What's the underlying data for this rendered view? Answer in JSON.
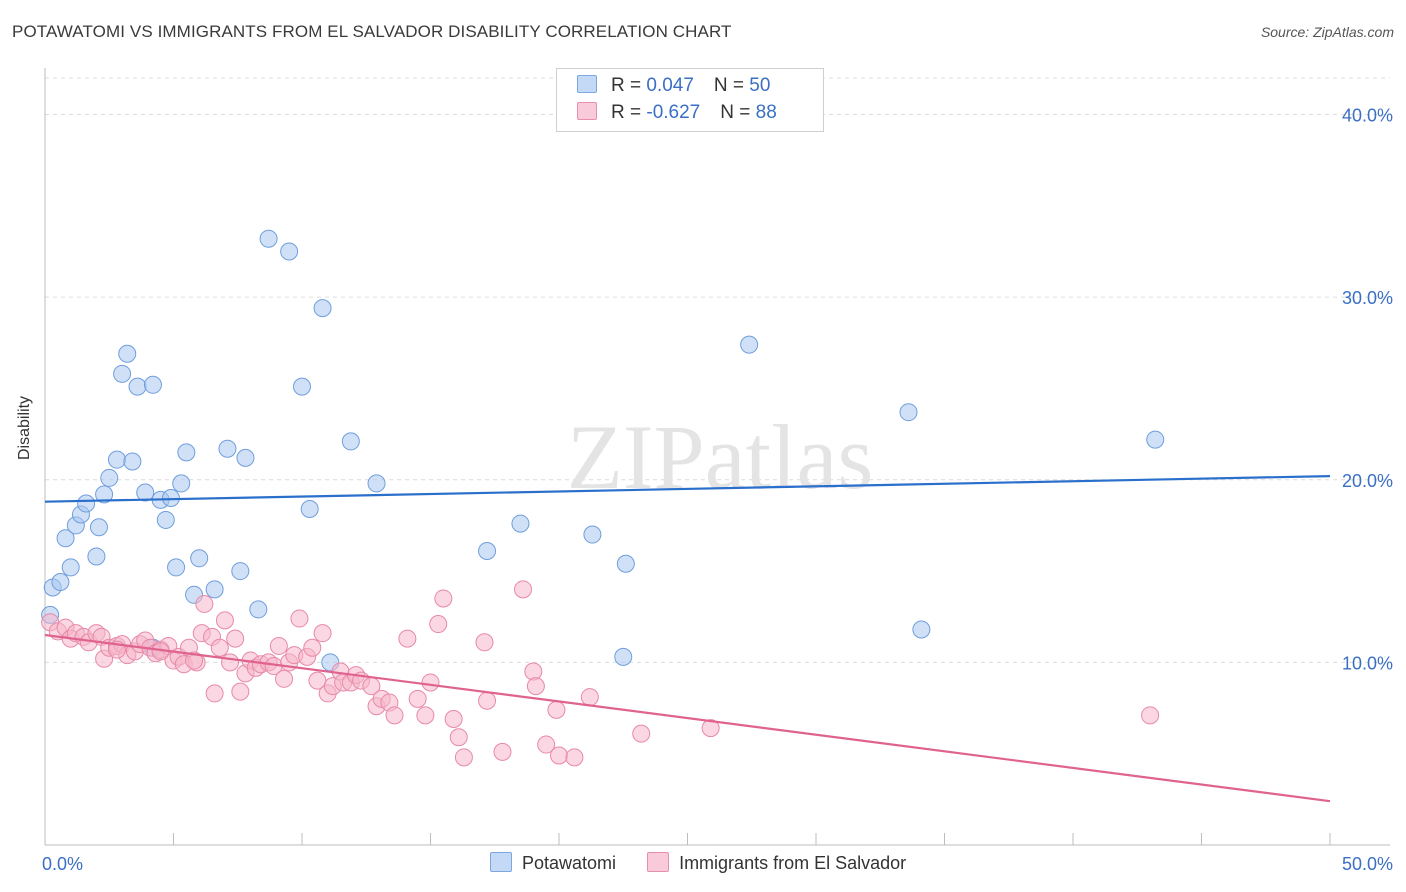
{
  "title": "POTAWATOMI VS IMMIGRANTS FROM EL SALVADOR DISABILITY CORRELATION CHART",
  "source": "Source: ZipAtlas.com",
  "watermark": "ZIPatlas",
  "legend": {
    "rows": [
      {
        "r_label": "R = ",
        "r_value": "0.047",
        "n_label": "N = ",
        "n_value": "50",
        "color": "#a9c8f0"
      },
      {
        "r_label": "R = ",
        "r_value": "-0.627",
        "n_label": "N = ",
        "n_value": "88",
        "color": "#f6b7cb"
      }
    ]
  },
  "chart_data": {
    "type": "scatter",
    "title": "POTAWATOMI VS IMMIGRANTS FROM EL SALVADOR DISABILITY CORRELATION CHART",
    "xlabel": "",
    "ylabel": "Disability",
    "xlim": [
      0,
      50
    ],
    "ylim": [
      0,
      42
    ],
    "x_ticks": [
      0,
      5,
      10,
      15,
      20,
      25,
      30,
      35,
      40,
      45,
      50
    ],
    "x_tick_labels": [
      "0.0%",
      "50.0%"
    ],
    "y_ticks": [
      10,
      20,
      30,
      40
    ],
    "y_tick_labels": [
      "10.0%",
      "20.0%",
      "30.0%",
      "40.0%"
    ],
    "grid": true,
    "legend_position": "top-center",
    "series": [
      {
        "name": "Potawatomi",
        "color": "#a9c8f0",
        "edge_color": "#6f9edc",
        "line_color": "#2a6fcb",
        "trend": [
          [
            0,
            18.8
          ],
          [
            50,
            20.2
          ]
        ],
        "points": [
          [
            0.3,
            14.1
          ],
          [
            0.6,
            14.4
          ],
          [
            0.8,
            16.8
          ],
          [
            1.0,
            15.2
          ],
          [
            1.2,
            17.5
          ],
          [
            1.4,
            18.1
          ],
          [
            1.6,
            18.7
          ],
          [
            2.0,
            15.8
          ],
          [
            2.1,
            17.4
          ],
          [
            2.3,
            19.2
          ],
          [
            2.5,
            20.1
          ],
          [
            2.8,
            21.1
          ],
          [
            3.0,
            25.8
          ],
          [
            3.2,
            26.9
          ],
          [
            3.4,
            21.0
          ],
          [
            3.6,
            25.1
          ],
          [
            3.9,
            19.3
          ],
          [
            4.2,
            25.2
          ],
          [
            4.5,
            18.9
          ],
          [
            4.7,
            17.8
          ],
          [
            4.9,
            19.0
          ],
          [
            5.1,
            15.2
          ],
          [
            5.3,
            19.8
          ],
          [
            5.5,
            21.5
          ],
          [
            5.8,
            13.7
          ],
          [
            6.0,
            15.7
          ],
          [
            6.6,
            14.0
          ],
          [
            7.1,
            21.7
          ],
          [
            7.6,
            15.0
          ],
          [
            7.8,
            21.2
          ],
          [
            8.3,
            12.9
          ],
          [
            8.7,
            33.2
          ],
          [
            9.5,
            32.5
          ],
          [
            10.0,
            25.1
          ],
          [
            10.3,
            18.4
          ],
          [
            10.8,
            29.4
          ],
          [
            11.1,
            10.0
          ],
          [
            11.9,
            22.1
          ],
          [
            12.9,
            19.8
          ],
          [
            17.2,
            16.1
          ],
          [
            18.5,
            17.6
          ],
          [
            21.3,
            17.0
          ],
          [
            22.5,
            10.3
          ],
          [
            22.6,
            15.4
          ],
          [
            27.4,
            27.4
          ],
          [
            33.6,
            23.7
          ],
          [
            34.1,
            11.8
          ],
          [
            43.2,
            22.2
          ],
          [
            0.2,
            12.6
          ],
          [
            4.2,
            10.8
          ]
        ]
      },
      {
        "name": "Immigrants from El Salvador",
        "color": "#f6b7cb",
        "edge_color": "#e889a8",
        "line_color": "#e0628f",
        "trend": [
          [
            0,
            11.5
          ],
          [
            50,
            2.4
          ]
        ],
        "points": [
          [
            0.2,
            12.2
          ],
          [
            0.5,
            11.7
          ],
          [
            0.8,
            11.9
          ],
          [
            1.0,
            11.3
          ],
          [
            1.2,
            11.6
          ],
          [
            1.5,
            11.4
          ],
          [
            1.7,
            11.1
          ],
          [
            2.0,
            11.6
          ],
          [
            2.2,
            11.4
          ],
          [
            2.3,
            10.2
          ],
          [
            2.5,
            10.8
          ],
          [
            2.8,
            10.9
          ],
          [
            3.0,
            11.0
          ],
          [
            3.2,
            10.4
          ],
          [
            3.5,
            10.6
          ],
          [
            3.7,
            11.0
          ],
          [
            3.9,
            11.2
          ],
          [
            4.1,
            10.8
          ],
          [
            4.3,
            10.5
          ],
          [
            4.5,
            10.7
          ],
          [
            4.8,
            10.9
          ],
          [
            5.0,
            10.1
          ],
          [
            5.2,
            10.3
          ],
          [
            5.4,
            9.9
          ],
          [
            5.6,
            10.8
          ],
          [
            5.9,
            10.0
          ],
          [
            6.1,
            11.6
          ],
          [
            6.2,
            13.2
          ],
          [
            6.5,
            11.4
          ],
          [
            6.6,
            8.3
          ],
          [
            6.8,
            10.8
          ],
          [
            7.0,
            12.3
          ],
          [
            7.2,
            10.0
          ],
          [
            7.4,
            11.3
          ],
          [
            7.6,
            8.4
          ],
          [
            7.8,
            9.4
          ],
          [
            8.0,
            10.1
          ],
          [
            8.2,
            9.7
          ],
          [
            8.4,
            9.9
          ],
          [
            8.7,
            10.0
          ],
          [
            8.9,
            9.8
          ],
          [
            9.1,
            10.9
          ],
          [
            9.3,
            9.1
          ],
          [
            9.5,
            10.0
          ],
          [
            9.7,
            10.4
          ],
          [
            9.9,
            12.4
          ],
          [
            10.2,
            10.3
          ],
          [
            10.4,
            10.8
          ],
          [
            10.6,
            9.0
          ],
          [
            10.8,
            11.6
          ],
          [
            11.0,
            8.3
          ],
          [
            11.2,
            8.7
          ],
          [
            11.5,
            9.5
          ],
          [
            11.6,
            8.9
          ],
          [
            11.9,
            8.9
          ],
          [
            12.1,
            9.3
          ],
          [
            12.3,
            9.0
          ],
          [
            12.7,
            8.7
          ],
          [
            12.9,
            7.6
          ],
          [
            13.1,
            8.0
          ],
          [
            13.4,
            7.8
          ],
          [
            13.6,
            7.1
          ],
          [
            14.1,
            11.3
          ],
          [
            14.5,
            8.0
          ],
          [
            14.8,
            7.1
          ],
          [
            15.0,
            8.9
          ],
          [
            15.3,
            12.1
          ],
          [
            15.5,
            13.5
          ],
          [
            15.9,
            6.9
          ],
          [
            16.1,
            5.9
          ],
          [
            16.3,
            4.8
          ],
          [
            17.1,
            11.1
          ],
          [
            17.2,
            7.9
          ],
          [
            17.8,
            5.1
          ],
          [
            18.6,
            14.0
          ],
          [
            19.0,
            9.5
          ],
          [
            19.1,
            8.7
          ],
          [
            19.5,
            5.5
          ],
          [
            19.9,
            7.4
          ],
          [
            20.0,
            4.9
          ],
          [
            20.6,
            4.8
          ],
          [
            21.2,
            8.1
          ],
          [
            23.2,
            6.1
          ],
          [
            25.9,
            6.4
          ],
          [
            43.0,
            7.1
          ],
          [
            2.8,
            10.7
          ],
          [
            4.5,
            10.6
          ],
          [
            5.8,
            10.1
          ]
        ]
      }
    ]
  }
}
